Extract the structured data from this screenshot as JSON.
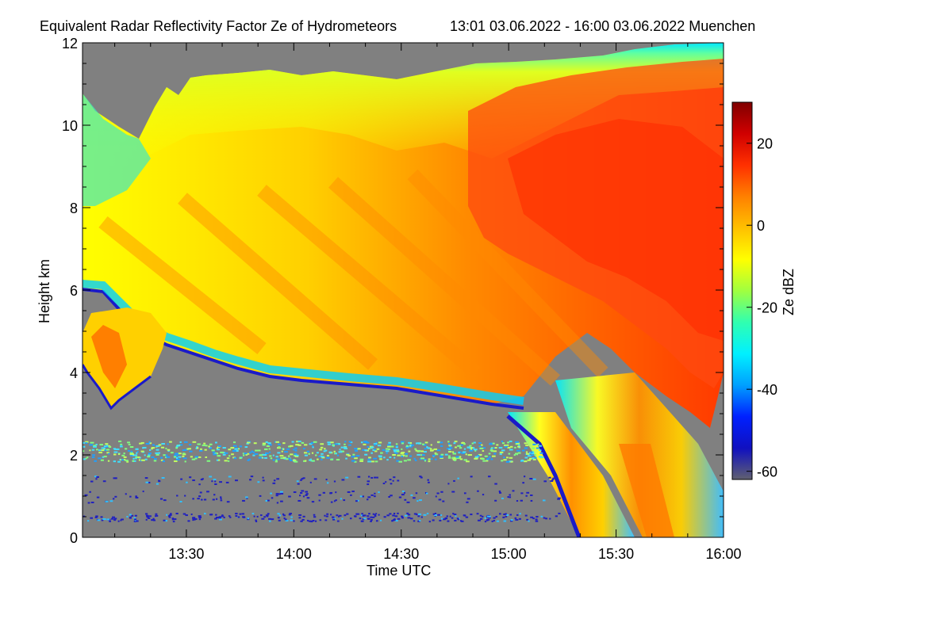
{
  "chart_data": {
    "type": "heatmap",
    "title": "Equivalent Radar Reflectivity Factor Ze of Hydrometeors",
    "subtitle": "13:01 03.06.2022 - 16:00 03.06.2022 Muenchen",
    "xlabel": "Time UTC",
    "ylabel": "Height km",
    "xlim": [
      "13:01",
      "16:00"
    ],
    "ylim": [
      0,
      12
    ],
    "x_ticks": [
      "13:30",
      "14:00",
      "14:30",
      "15:00",
      "15:30",
      "16:00"
    ],
    "x_tick_minutes": [
      30,
      60,
      90,
      120,
      150,
      180
    ],
    "y_ticks": [
      0,
      2,
      4,
      6,
      8,
      10,
      12
    ],
    "colorbar": {
      "label": "Ze dBZ",
      "range": [
        -62,
        30
      ],
      "ticks": [
        20,
        0,
        -20,
        -40,
        -60
      ],
      "colors": [
        "#606070",
        "#1010c0",
        "#0020ff",
        "#00a0ff",
        "#00f0ff",
        "#30ffb0",
        "#a0ff40",
        "#ffff00",
        "#ffc000",
        "#ff8000",
        "#ff3000",
        "#d00000",
        "#800000"
      ]
    },
    "background_color": "#808080",
    "regions": [
      {
        "name": "ice-cloud",
        "description_values": {
          "top_km": [
            10.8,
            12.0
          ],
          "base_km": [
            6.0,
            3.0
          ]
        }
      },
      {
        "name": "lower-echo",
        "time_range": [
          "13:01",
          "13:30"
        ],
        "height_km": [
          3.2,
          5.0
        ]
      },
      {
        "name": "rain-shafts",
        "time_range": [
          "15:00",
          "16:00"
        ],
        "height_km": [
          0,
          3.0
        ]
      },
      {
        "name": "clutter-band",
        "height_km": [
          1.8,
          2.4
        ]
      }
    ]
  }
}
